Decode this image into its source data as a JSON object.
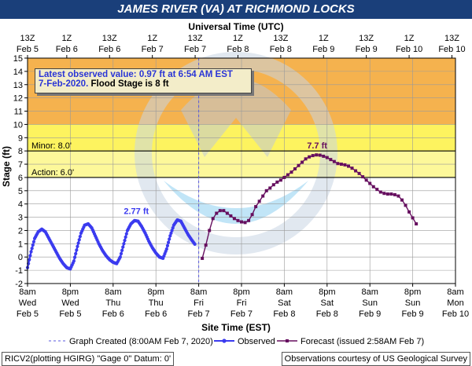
{
  "title": "JAMES RIVER (VA) AT RICHMOND LOCKS",
  "top_axis_title": "Universal Time (UTC)",
  "bottom_axis_title": "Site Time (EST)",
  "info_box": {
    "line1": "Latest observed value: 0.97 ft at 6:54 AM EST",
    "line2_date": "7-Feb-2020.",
    "line2_flood": "Flood Stage is 8 ft"
  },
  "legend": {
    "graph_created": "Graph Created (8:00AM Feb 7, 2020)",
    "observed": "Observed",
    "forecast": "Forecast (issued 2:58AM Feb 7)"
  },
  "footer": {
    "left": "RICV2(plotting HGIRG) \"Gage 0\" Datum: 0'",
    "right": "Observations courtesy of US Geological Survey"
  },
  "colors": {
    "title_bg": "#1a3f7a",
    "observed": "#3b3bef",
    "forecast": "#660f5f",
    "zone_major": "#f5b24e",
    "zone_minor": "#fdf35f",
    "zone_action": "#fdf89a"
  },
  "chart_data": {
    "type": "line",
    "ylabel": "Stage (ft)",
    "xlabel": "Site Time (EST)",
    "ylim": [
      -2,
      15
    ],
    "yticks": [
      -2,
      -1,
      0,
      1,
      2,
      3,
      4,
      5,
      6,
      7,
      8,
      9,
      10,
      11,
      12,
      13,
      14,
      15
    ],
    "x_unit": "hours since 12AM Feb 5 (EST)",
    "xlim": [
      8,
      128
    ],
    "bottom_ticks": [
      {
        "t": 8,
        "l1": "8am",
        "l2": "Wed",
        "l3": "Feb 5"
      },
      {
        "t": 20,
        "l1": "8pm",
        "l2": "Wed",
        "l3": "Feb 5"
      },
      {
        "t": 32,
        "l1": "8am",
        "l2": "Thu",
        "l3": "Feb 6"
      },
      {
        "t": 44,
        "l1": "8pm",
        "l2": "Thu",
        "l3": "Feb 6"
      },
      {
        "t": 56,
        "l1": "8am",
        "l2": "Fri",
        "l3": "Feb 7"
      },
      {
        "t": 68,
        "l1": "8pm",
        "l2": "Fri",
        "l3": "Feb 7"
      },
      {
        "t": 80,
        "l1": "8am",
        "l2": "Sat",
        "l3": "Feb 8"
      },
      {
        "t": 92,
        "l1": "8pm",
        "l2": "Sat",
        "l3": "Feb 8"
      },
      {
        "t": 104,
        "l1": "8am",
        "l2": "Sun",
        "l3": "Feb 9"
      },
      {
        "t": 116,
        "l1": "8pm",
        "l2": "Sun",
        "l3": "Feb 9"
      },
      {
        "t": 128,
        "l1": "8am",
        "l2": "Mon",
        "l3": "Feb 10"
      }
    ],
    "top_ticks": [
      {
        "t": 8,
        "l1": "13Z",
        "l2": "Feb 5"
      },
      {
        "t": 19,
        "l1": "1Z",
        "l2": "Feb 6"
      },
      {
        "t": 31,
        "l1": "13Z",
        "l2": "Feb 6"
      },
      {
        "t": 43,
        "l1": "1Z",
        "l2": "Feb 7"
      },
      {
        "t": 55,
        "l1": "13Z",
        "l2": "Feb 7"
      },
      {
        "t": 67,
        "l1": "1Z",
        "l2": "Feb 8"
      },
      {
        "t": 79,
        "l1": "13Z",
        "l2": "Feb 8"
      },
      {
        "t": 91,
        "l1": "1Z",
        "l2": "Feb 9"
      },
      {
        "t": 103,
        "l1": "13Z",
        "l2": "Feb 9"
      },
      {
        "t": 115,
        "l1": "1Z",
        "l2": "Feb 10"
      },
      {
        "t": 127,
        "l1": "13Z",
        "l2": "Feb 10"
      }
    ],
    "thresholds": [
      {
        "name": "Minor: 8.0'",
        "value": 8.0
      },
      {
        "name": "Action: 6.0'",
        "value": 6.0
      }
    ],
    "zones": [
      {
        "name": "major",
        "from": 10,
        "to": 15
      },
      {
        "name": "minor",
        "from": 8,
        "to": 10
      },
      {
        "name": "action",
        "from": 6,
        "to": 8
      }
    ],
    "graph_created_t": 56,
    "annotations": [
      {
        "text": "2.77 ft",
        "t": 38.5,
        "y": 2.77,
        "series": "Observed"
      },
      {
        "text": "7.7 ft",
        "t": 89.2,
        "y": 7.7,
        "series": "Forecast"
      }
    ],
    "series": [
      {
        "name": "Observed",
        "marker": "circle",
        "points": [
          [
            8,
            -0.8
          ],
          [
            9,
            0.4
          ],
          [
            10,
            1.4
          ],
          [
            11,
            1.9
          ],
          [
            12,
            2.1
          ],
          [
            13,
            1.9
          ],
          [
            14,
            1.4
          ],
          [
            15,
            0.9
          ],
          [
            16,
            0.4
          ],
          [
            17,
            -0.1
          ],
          [
            18,
            -0.5
          ],
          [
            19,
            -0.8
          ],
          [
            20,
            -0.9
          ],
          [
            21,
            -0.3
          ],
          [
            22,
            0.8
          ],
          [
            23,
            1.8
          ],
          [
            24,
            2.4
          ],
          [
            25,
            2.5
          ],
          [
            26,
            2.2
          ],
          [
            27,
            1.6
          ],
          [
            28,
            1.0
          ],
          [
            29,
            0.5
          ],
          [
            30,
            0.1
          ],
          [
            31,
            -0.2
          ],
          [
            32,
            -0.4
          ],
          [
            33,
            -0.5
          ],
          [
            34,
            0.0
          ],
          [
            35,
            1.0
          ],
          [
            36,
            2.0
          ],
          [
            37,
            2.5
          ],
          [
            38,
            2.75
          ],
          [
            39,
            2.7
          ],
          [
            40,
            2.3
          ],
          [
            41,
            1.8
          ],
          [
            42,
            1.2
          ],
          [
            43,
            0.7
          ],
          [
            44,
            0.3
          ],
          [
            45,
            0.0
          ],
          [
            46,
            -0.1
          ],
          [
            47,
            0.6
          ],
          [
            48,
            1.6
          ],
          [
            49,
            2.4
          ],
          [
            50,
            2.8
          ],
          [
            51,
            2.7
          ],
          [
            52,
            2.2
          ],
          [
            53,
            1.7
          ],
          [
            54,
            1.3
          ],
          [
            54.9,
            0.97
          ]
        ]
      },
      {
        "name": "Forecast",
        "marker": "square",
        "points": [
          [
            57,
            -0.1
          ],
          [
            58,
            0.9
          ],
          [
            59,
            2.0
          ],
          [
            60,
            2.9
          ],
          [
            61,
            3.3
          ],
          [
            62,
            3.5
          ],
          [
            63,
            3.5
          ],
          [
            64,
            3.3
          ],
          [
            65,
            3.1
          ],
          [
            66,
            2.9
          ],
          [
            67,
            2.75
          ],
          [
            68,
            2.65
          ],
          [
            69,
            2.6
          ],
          [
            70,
            2.75
          ],
          [
            71,
            3.2
          ],
          [
            72,
            3.8
          ],
          [
            73,
            4.2
          ],
          [
            74,
            4.6
          ],
          [
            75,
            5.0
          ],
          [
            76,
            5.2
          ],
          [
            77,
            5.45
          ],
          [
            78,
            5.65
          ],
          [
            79,
            5.8
          ],
          [
            80,
            6.0
          ],
          [
            81,
            6.2
          ],
          [
            82,
            6.4
          ],
          [
            83,
            6.65
          ],
          [
            84,
            6.9
          ],
          [
            85,
            7.15
          ],
          [
            86,
            7.4
          ],
          [
            87,
            7.55
          ],
          [
            88,
            7.65
          ],
          [
            89,
            7.7
          ],
          [
            90,
            7.68
          ],
          [
            91,
            7.6
          ],
          [
            92,
            7.5
          ],
          [
            93,
            7.35
          ],
          [
            94,
            7.2
          ],
          [
            95,
            7.05
          ],
          [
            96,
            7.0
          ],
          [
            97,
            6.95
          ],
          [
            98,
            6.85
          ],
          [
            99,
            6.7
          ],
          [
            100,
            6.5
          ],
          [
            101,
            6.3
          ],
          [
            102,
            6.05
          ],
          [
            103,
            5.8
          ],
          [
            104,
            5.55
          ],
          [
            105,
            5.3
          ],
          [
            106,
            5.1
          ],
          [
            107,
            4.9
          ],
          [
            108,
            4.8
          ],
          [
            109,
            4.75
          ],
          [
            110,
            4.75
          ],
          [
            111,
            4.7
          ],
          [
            112,
            4.6
          ],
          [
            113,
            4.3
          ],
          [
            114,
            3.9
          ],
          [
            115,
            3.4
          ],
          [
            116,
            2.95
          ],
          [
            117,
            2.5
          ]
        ]
      }
    ]
  }
}
